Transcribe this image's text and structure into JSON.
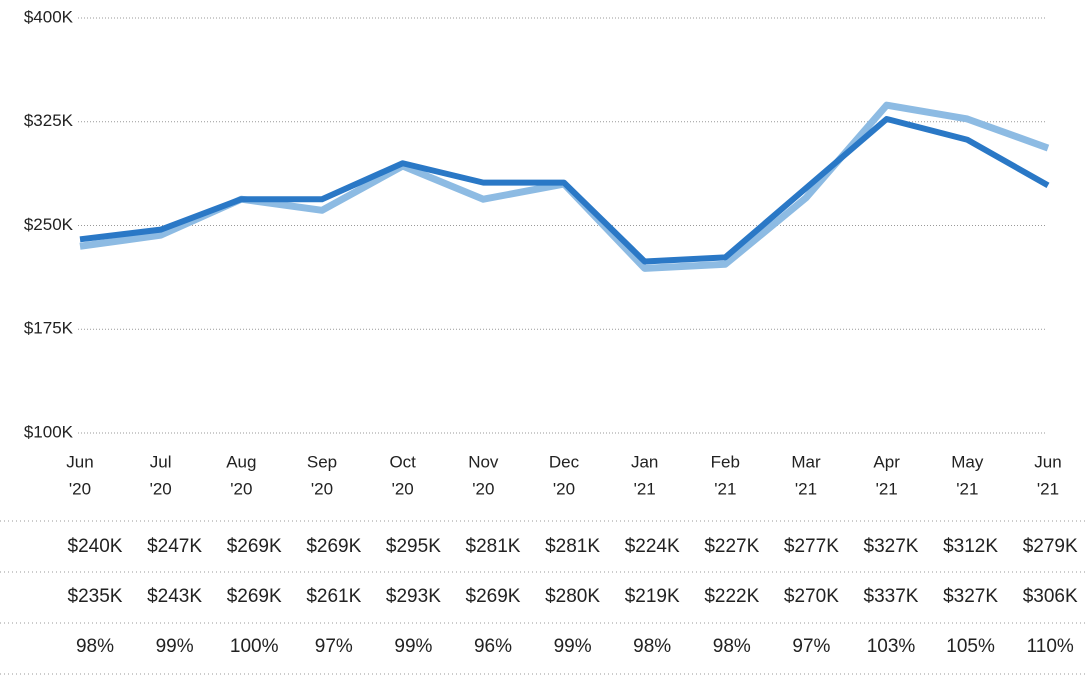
{
  "chart_data": {
    "type": "line",
    "categories": [
      [
        "Jun",
        "'20"
      ],
      [
        "Jul",
        "'20"
      ],
      [
        "Aug",
        "'20"
      ],
      [
        "Sep",
        "'20"
      ],
      [
        "Oct",
        "'20"
      ],
      [
        "Nov",
        "'20"
      ],
      [
        "Dec",
        "'20"
      ],
      [
        "Jan",
        "'21"
      ],
      [
        "Feb",
        "'21"
      ],
      [
        "Mar",
        "'21"
      ],
      [
        "Apr",
        "'21"
      ],
      [
        "May",
        "'21"
      ],
      [
        "Jun",
        "'21"
      ]
    ],
    "series": [
      {
        "color": "#2a78c6",
        "values": [
          240000,
          247000,
          269000,
          269000,
          295000,
          281000,
          281000,
          224000,
          227000,
          277000,
          327000,
          312000,
          279000
        ],
        "value_labels": [
          "$240K",
          "$247K",
          "$269K",
          "$269K",
          "$295K",
          "$281K",
          "$281K",
          "$224K",
          "$227K",
          "$277K",
          "$327K",
          "$312K",
          "$279K"
        ]
      },
      {
        "color": "#8dbbe3",
        "values": [
          235000,
          243000,
          269000,
          261000,
          293000,
          269000,
          280000,
          219000,
          222000,
          270000,
          337000,
          327000,
          306000
        ],
        "value_labels": [
          "$235K",
          "$243K",
          "$269K",
          "$261K",
          "$293K",
          "$269K",
          "$280K",
          "$219K",
          "$222K",
          "$270K",
          "$337K",
          "$327K",
          "$306K"
        ]
      }
    ],
    "percent": {
      "values": [
        98,
        99,
        100,
        97,
        99,
        96,
        99,
        98,
        98,
        97,
        103,
        105,
        110
      ],
      "value_labels": [
        "98%",
        "99%",
        "100%",
        "97%",
        "99%",
        "96%",
        "99%",
        "98%",
        "98%",
        "97%",
        "103%",
        "105%",
        "110%"
      ]
    },
    "ylim": [
      100000,
      400000
    ],
    "yticks": [
      {
        "value": 100000,
        "label": "$100K"
      },
      {
        "value": 175000,
        "label": "$175K"
      },
      {
        "value": 250000,
        "label": "$250K"
      },
      {
        "value": 325000,
        "label": "$325K"
      },
      {
        "value": 400000,
        "label": "$400K"
      }
    ],
    "grid": true
  }
}
